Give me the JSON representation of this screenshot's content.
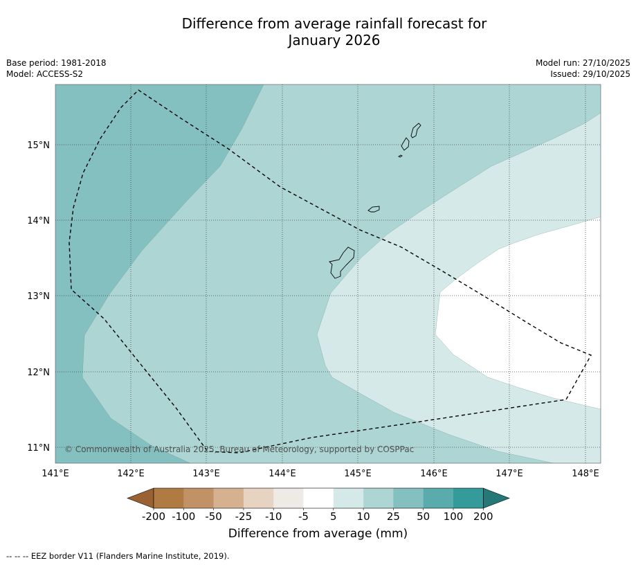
{
  "title": "Difference from average rainfall forecast for",
  "title_month": "January 2026",
  "meta": {
    "base_period": "Base period: 1981-2018",
    "model": "Model: ACCESS-S2",
    "model_run": "Model run: 27/10/2025",
    "issued": "Issued: 29/10/2025"
  },
  "map": {
    "lon_ticks": [
      "141°E",
      "142°E",
      "143°E",
      "144°E",
      "145°E",
      "146°E",
      "147°E",
      "148°E"
    ],
    "lat_ticks": [
      "15°N",
      "14°N",
      "13°N",
      "12°N",
      "11°N"
    ],
    "copyright": "© Commonwealth of Australia 2025, Bureau of Meteorology, supported by COSPPac"
  },
  "colorbar": {
    "labels": [
      "-200",
      "-100",
      "-50",
      "-25",
      "-10",
      "-5",
      "5",
      "10",
      "25",
      "50",
      "100",
      "200"
    ],
    "colors": [
      "#9a6232",
      "#b07a43",
      "#c19266",
      "#d5b190",
      "#e7d3c2",
      "#eeebe7",
      "#ffffff",
      "#d5e9e9",
      "#acd5d4",
      "#84c0bf",
      "#5aacac",
      "#349a9a",
      "#267878"
    ],
    "title": "Difference from average (mm)"
  },
  "footnote": "--  --  -- EEZ border V11 (Flanders Marine Institute, 2019)."
}
